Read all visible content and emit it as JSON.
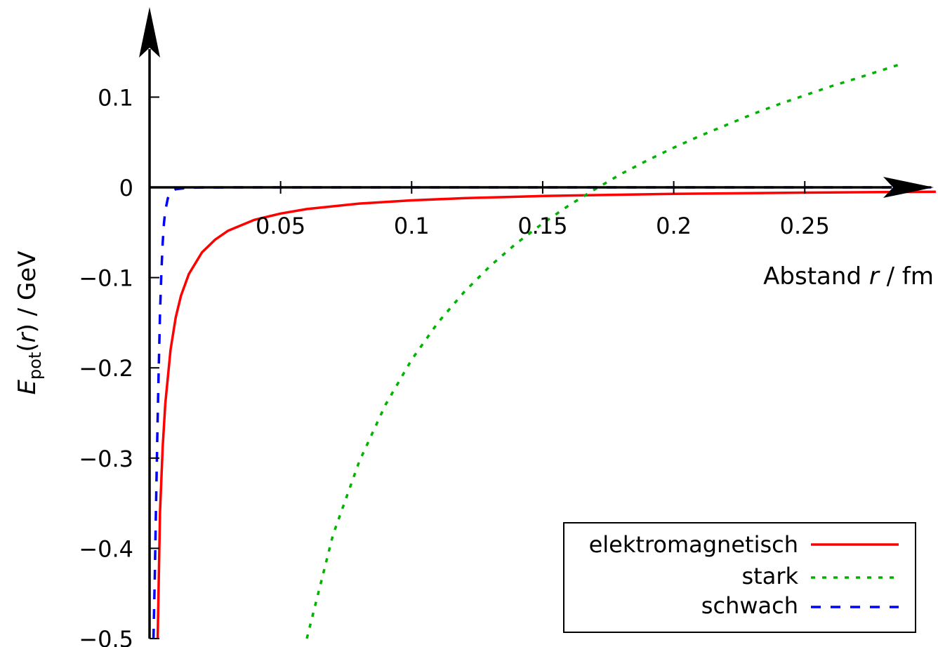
{
  "chart_data": {
    "type": "line",
    "xlabel": {
      "prefix": "Abstand ",
      "var": "r",
      "suffix": " / fm"
    },
    "ylabel": {
      "main": "E",
      "sub": "pot",
      "paren_open": "(",
      "var": "r",
      "paren_close": ")",
      "suffix": " / GeV"
    },
    "xlim": [
      0,
      0.3
    ],
    "ylim": [
      -0.5,
      0.15
    ],
    "x_ticks": [
      {
        "value": 0.05,
        "label": "0.05"
      },
      {
        "value": 0.1,
        "label": "0.1"
      },
      {
        "value": 0.15,
        "label": "0.15"
      },
      {
        "value": 0.2,
        "label": "0.2"
      },
      {
        "value": 0.25,
        "label": "0.25"
      }
    ],
    "y_ticks": [
      {
        "value": 0.1,
        "label": "0.1"
      },
      {
        "value": 0,
        "label": "0"
      },
      {
        "value": -0.1,
        "label": "−0.1"
      },
      {
        "value": -0.2,
        "label": "−0.2"
      },
      {
        "value": -0.3,
        "label": "−0.3"
      },
      {
        "value": -0.4,
        "label": "−0.4"
      },
      {
        "value": -0.5,
        "label": "−0.5"
      }
    ],
    "grid": false,
    "legend_position": "bottom-right",
    "series": [
      {
        "name": "elektromagnetisch",
        "color": "#ff0000",
        "dash": "solid",
        "x": [
          0.0031,
          0.004,
          0.005,
          0.006,
          0.008,
          0.01,
          0.012,
          0.015,
          0.02,
          0.025,
          0.03,
          0.04,
          0.05,
          0.06,
          0.08,
          0.1,
          0.12,
          0.15,
          0.2,
          0.25,
          0.3
        ],
        "y": [
          -0.5,
          -0.36,
          -0.288,
          -0.24,
          -0.18,
          -0.144,
          -0.12,
          -0.096,
          -0.072,
          -0.058,
          -0.048,
          -0.036,
          -0.029,
          -0.024,
          -0.018,
          -0.0144,
          -0.012,
          -0.0096,
          -0.0072,
          -0.0058,
          -0.0048
        ]
      },
      {
        "name": "stark",
        "color": "#00b300",
        "dash": "dotted",
        "x": [
          0.06,
          0.07,
          0.08,
          0.09,
          0.1,
          0.11,
          0.12,
          0.13,
          0.14,
          0.15,
          0.16,
          0.17,
          0.18,
          0.19,
          0.2,
          0.21,
          0.22,
          0.23,
          0.24,
          0.25,
          0.26,
          0.27,
          0.286
        ],
        "y": [
          -0.5,
          -0.385,
          -0.304,
          -0.241,
          -0.191,
          -0.15,
          -0.116,
          -0.087,
          -0.062,
          -0.04,
          -0.02,
          -0.002,
          0.015,
          0.03,
          0.044,
          0.057,
          0.069,
          0.081,
          0.092,
          0.102,
          0.112,
          0.121,
          0.136
        ]
      },
      {
        "name": "schwach",
        "color": "#0000ff",
        "dash": "dashed",
        "x": [
          0.0015,
          0.002,
          0.0025,
          0.003,
          0.0035,
          0.004,
          0.0045,
          0.005,
          0.0055,
          0.006,
          0.007,
          0.008,
          0.01,
          0.015,
          0.02,
          0.05,
          0.1,
          0.2,
          0.3
        ],
        "y": [
          -0.5,
          -0.43,
          -0.35,
          -0.27,
          -0.2,
          -0.14,
          -0.095,
          -0.062,
          -0.04,
          -0.026,
          -0.012,
          -0.006,
          -0.002,
          -0.0005,
          -0.0001,
          0,
          0,
          0,
          0
        ]
      }
    ]
  }
}
